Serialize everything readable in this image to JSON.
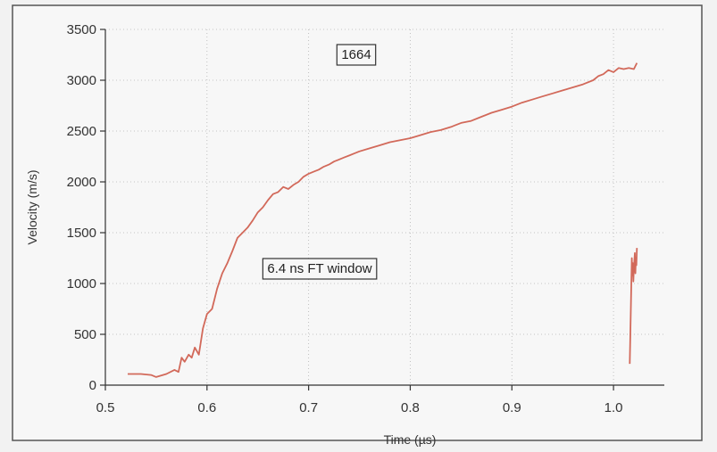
{
  "chart_data": {
    "type": "line",
    "xlabel": "Time (µs)",
    "ylabel": "Velocity (m/s)",
    "xlim": [
      0.5,
      1.05
    ],
    "ylim": [
      0,
      3500
    ],
    "x_ticks": [
      0.5,
      0.6,
      0.7,
      0.8,
      0.9,
      1.0
    ],
    "x_tick_labels": [
      "0.5",
      "0.6",
      "0.7",
      "0.8",
      "0.9",
      "1.0"
    ],
    "y_ticks": [
      0,
      500,
      1000,
      1500,
      2000,
      2500,
      3000,
      3500
    ],
    "y_tick_labels": [
      "0",
      "500",
      "1000",
      "1500",
      "2000",
      "2500",
      "3000",
      "3500"
    ],
    "grid": true,
    "line_color": "#d2695a",
    "annotations": [
      "1664",
      "6.4 ns FT window"
    ],
    "series": [
      {
        "x": [
          0.522,
          0.535,
          0.545,
          0.55,
          0.56,
          0.568,
          0.572,
          0.575,
          0.578,
          0.582,
          0.585,
          0.588,
          0.592,
          0.596,
          0.6,
          0.605,
          0.61,
          0.615,
          0.62,
          0.625,
          0.63,
          0.635,
          0.64,
          0.645,
          0.65,
          0.655,
          0.66,
          0.665,
          0.67,
          0.675,
          0.68,
          0.685,
          0.69,
          0.695,
          0.7,
          0.705,
          0.71,
          0.715,
          0.72,
          0.725,
          0.73,
          0.735,
          0.74,
          0.745,
          0.75,
          0.76,
          0.77,
          0.78,
          0.79,
          0.8,
          0.81,
          0.82,
          0.83,
          0.84,
          0.85,
          0.86,
          0.87,
          0.88,
          0.89,
          0.9,
          0.91,
          0.92,
          0.93,
          0.94,
          0.95,
          0.96,
          0.97,
          0.98,
          0.985,
          0.99,
          0.995,
          1.0,
          1.005,
          1.01,
          1.015,
          1.02,
          1.023
        ],
        "y": [
          110,
          110,
          100,
          80,
          110,
          150,
          130,
          270,
          230,
          300,
          270,
          370,
          300,
          560,
          700,
          750,
          950,
          1100,
          1200,
          1320,
          1450,
          1500,
          1550,
          1620,
          1700,
          1750,
          1820,
          1880,
          1900,
          1950,
          1930,
          1970,
          2000,
          2050,
          2080,
          2100,
          2120,
          2150,
          2170,
          2200,
          2220,
          2240,
          2260,
          2280,
          2300,
          2330,
          2360,
          2390,
          2410,
          2430,
          2460,
          2490,
          2510,
          2540,
          2580,
          2600,
          2640,
          2680,
          2710,
          2740,
          2780,
          2810,
          2840,
          2870,
          2900,
          2930,
          2960,
          3000,
          3040,
          3060,
          3100,
          3080,
          3120,
          3110,
          3120,
          3110,
          3170
        ]
      },
      {
        "x": [
          1.016,
          1.017,
          1.018,
          1.0185,
          1.019,
          1.0195,
          1.02,
          1.021,
          1.0215,
          1.022,
          1.0225,
          1.023
        ],
        "y": [
          210,
          700,
          1250,
          1080,
          1200,
          1020,
          1150,
          1300,
          1100,
          1250,
          1180,
          1350
        ]
      }
    ]
  }
}
